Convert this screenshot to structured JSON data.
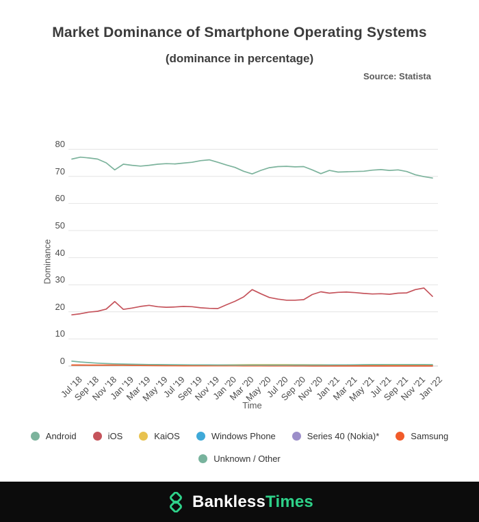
{
  "header": {
    "title": "Market Dominance of Smartphone Operating Systems",
    "subtitle": "(dominance in percentage)",
    "source": "Source: Statista"
  },
  "chart_data": {
    "type": "line",
    "title": "Market Dominance of Smartphone Operating Systems",
    "subtitle": "(dominance in percentage)",
    "xlabel": "Time",
    "ylabel": "Dominance",
    "ylim": [
      0,
      80
    ],
    "yticks": [
      0,
      10,
      20,
      30,
      40,
      50,
      60,
      70,
      80
    ],
    "grid": true,
    "legend_position": "bottom",
    "x": [
      "Jul '18",
      "Aug '18",
      "Sep '18",
      "Oct '18",
      "Nov '18",
      "Dec '18",
      "Jan '19",
      "Feb '19",
      "Mar '19",
      "Apr '19",
      "May '19",
      "Jun '19",
      "Jul '19",
      "Aug '19",
      "Sep '19",
      "Oct '19",
      "Nov '19",
      "Dec '19",
      "Jan '20",
      "Feb '20",
      "Mar '20",
      "Apr '20",
      "May '20",
      "Jun '20",
      "Jul '20",
      "Aug '20",
      "Sep '20",
      "Oct '20",
      "Nov '20",
      "Dec '20",
      "Jan '21",
      "Feb '21",
      "Mar '21",
      "Apr '21",
      "May '21",
      "Jun '21",
      "Jul '21",
      "Aug '21",
      "Sep '21",
      "Oct '21",
      "Nov '21",
      "Dec '21",
      "Jan '22"
    ],
    "xtick_every": 2,
    "series": [
      {
        "name": "Android",
        "color": "#7cb39c",
        "values": [
          76.4,
          77.1,
          76.8,
          76.4,
          75.0,
          72.4,
          74.5,
          74.1,
          73.8,
          74.1,
          74.5,
          74.7,
          74.6,
          74.9,
          75.2,
          75.8,
          76.1,
          75.2,
          74.2,
          73.3,
          71.9,
          70.9,
          72.2,
          73.2,
          73.6,
          73.7,
          73.5,
          73.6,
          72.4,
          71.0,
          72.2,
          71.6,
          71.7,
          71.8,
          71.9,
          72.3,
          72.5,
          72.2,
          72.4,
          71.8,
          70.6,
          69.9,
          69.4
        ]
      },
      {
        "name": "iOS",
        "color": "#c5535b",
        "values": [
          18.9,
          19.3,
          19.9,
          20.2,
          21.0,
          23.8,
          20.9,
          21.4,
          22.0,
          22.4,
          21.9,
          21.7,
          21.8,
          22.0,
          21.9,
          21.5,
          21.3,
          21.2,
          22.6,
          23.9,
          25.5,
          28.2,
          26.7,
          25.3,
          24.7,
          24.3,
          24.3,
          24.5,
          26.4,
          27.4,
          26.9,
          27.2,
          27.3,
          27.1,
          26.8,
          26.6,
          26.7,
          26.5,
          26.9,
          27.0,
          28.2,
          28.8,
          25.7
        ]
      },
      {
        "name": "KaiOS",
        "color": "#e8c24f",
        "values": [
          0.25,
          0.25,
          0.26,
          0.27,
          0.28,
          0.28,
          0.28,
          0.28,
          0.28,
          0.28,
          0.28,
          0.28,
          0.27,
          0.27,
          0.28,
          0.3,
          0.32,
          0.35,
          0.4,
          0.45,
          0.48,
          0.5,
          0.5,
          0.5,
          0.5,
          0.5,
          0.48,
          0.47,
          0.46,
          0.45,
          0.44,
          0.43,
          0.42,
          0.4,
          0.38,
          0.37,
          0.36,
          0.35,
          0.34,
          0.33,
          0.32,
          0.31,
          0.3
        ]
      },
      {
        "name": "Windows Phone",
        "color": "#3fa9d8",
        "values": [
          0.32,
          0.31,
          0.3,
          0.3,
          0.3,
          0.3,
          0.3,
          0.29,
          0.29,
          0.29,
          0.3,
          0.3,
          0.3,
          0.3,
          0.3,
          0.3,
          0.28,
          0.26,
          0.22,
          0.18,
          0.15,
          0.12,
          0.1,
          0.09,
          0.08,
          0.07,
          0.06,
          0.06,
          0.05,
          0.05,
          0.05,
          0.04,
          0.04,
          0.04,
          0.03,
          0.03,
          0.03,
          0.03,
          0.02,
          0.02,
          0.02,
          0.02,
          0.02
        ]
      },
      {
        "name": "Series 40 (Nokia)*",
        "color": "#9c8ec9",
        "values": [
          0.3,
          0.3,
          0.3,
          0.3,
          0.3,
          0.31,
          0.32,
          0.32,
          0.31,
          0.3,
          0.29,
          0.28,
          0.26,
          0.24,
          0.22,
          0.2,
          0.17,
          0.14,
          0.12,
          0.1,
          0.09,
          0.08,
          0.07,
          0.06,
          0.05,
          0.05,
          0.04,
          0.04,
          0.03,
          0.03,
          0.03,
          0.02,
          0.02,
          0.02,
          0.02,
          0.02,
          0.01,
          0.01,
          0.01,
          0.01,
          0.01,
          0.01,
          0.01
        ]
      },
      {
        "name": "Samsung",
        "color": "#f15b2a",
        "values": [
          0.38,
          0.37,
          0.36,
          0.36,
          0.35,
          0.35,
          0.34,
          0.25,
          0.2,
          0.17,
          0.15,
          0.13,
          0.12,
          0.11,
          0.1,
          0.09,
          0.08,
          0.08,
          0.07,
          0.07,
          0.06,
          0.06,
          0.05,
          0.05,
          0.05,
          0.04,
          0.04,
          0.04,
          0.03,
          0.03,
          0.03,
          0.03,
          0.03,
          0.02,
          0.02,
          0.02,
          0.02,
          0.02,
          0.02,
          0.02,
          0.02,
          0.02,
          0.02
        ]
      },
      {
        "name": "Unknown / Other",
        "color": "#78b39d",
        "values": [
          1.8,
          1.5,
          1.25,
          1.05,
          0.9,
          0.8,
          0.72,
          0.65,
          0.6,
          0.56,
          0.52,
          0.5,
          0.48,
          0.46,
          0.44,
          0.42,
          0.4,
          0.38,
          0.37,
          0.36,
          0.35,
          0.35,
          0.35,
          0.35,
          0.36,
          0.36,
          0.37,
          0.37,
          0.38,
          0.38,
          0.4,
          0.42,
          0.44,
          0.46,
          0.5,
          0.52,
          0.54,
          0.55,
          0.55,
          0.54,
          0.53,
          0.52,
          0.5
        ]
      }
    ]
  },
  "footer": {
    "brand_white": "Bankless",
    "brand_green": "Times",
    "accent_color": "#2ed189"
  }
}
